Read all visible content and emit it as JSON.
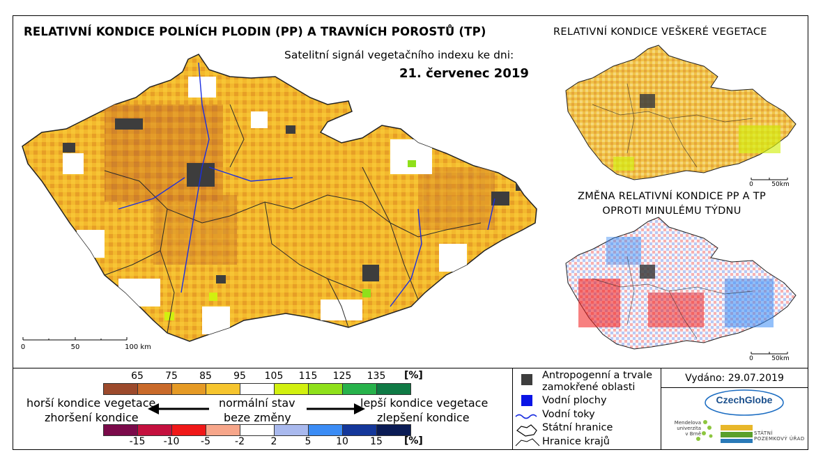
{
  "title": "RELATIVNÍ KONDICE POLNÍCH PLODIN (PP) A TRAVNÍCH POROSTŮ (TP)",
  "subtitle": "Satelitní signál vegetačního indexu ke dni:",
  "date": "21. červenec 2019",
  "right_panel_top_title": "RELATIVNÍ KONDICE VEŠKERÉ VEGETACE",
  "right_panel_bottom_title_line1": "ZMĚNA RELATIVNÍ KONDICE PP A TP",
  "right_panel_bottom_title_line2": "OPROTI MINULÉMU TÝDNU",
  "scale_main": {
    "ticks": [
      "0",
      "50",
      "100 km"
    ]
  },
  "scale_small_top": {
    "ticks": [
      "0",
      "50km"
    ]
  },
  "scale_small_bottom": {
    "ticks": [
      "0",
      "50km"
    ]
  },
  "legend": {
    "top_ticks": [
      "65",
      "75",
      "85",
      "95",
      "105",
      "115",
      "125",
      "135"
    ],
    "top_unit": "[%]",
    "top_colors": [
      "#9c4a2c",
      "#c96a2a",
      "#e59a25",
      "#f6c52e",
      "#ffffff",
      "#d2f00f",
      "#8fe01a",
      "#27b24b",
      "#0f7a45"
    ],
    "bottom_ticks": [
      "-15",
      "-10",
      "-5",
      "-2",
      "2",
      "5",
      "10",
      "15"
    ],
    "bottom_unit": "[%]",
    "bottom_colors": [
      "#7a0a4a",
      "#c4103e",
      "#f01818",
      "#f7a68a",
      "#ffffff",
      "#a9b9ee",
      "#3b8cf5",
      "#14379a",
      "#0a1b55"
    ],
    "worse_condition": "horší kondice vegetace",
    "worsened": "zhoršení kondice",
    "normal_state": "normální stav",
    "no_change": "beze změny",
    "better_condition": "lepší kondice vegetace",
    "improved": "zlepšení kondice"
  },
  "symbols": {
    "anthropogenic_line1": "Antropogenní a trvale",
    "anthropogenic_line2": "zamokřené oblasti",
    "water_bodies": "Vodní plochy",
    "rivers": "Vodní toky",
    "state_border": "Státní hranice",
    "region_border": "Hranice krajů",
    "colors": {
      "anthropogenic": "#3d3d3d",
      "water": "#0a14e6",
      "river": "#1a2ee0"
    }
  },
  "issued": "Vydáno: 29.07.2019",
  "logos": {
    "czechglobe": "CzechGlobe",
    "mendel_line1": "Mendelova",
    "mendel_line2": "univerzita",
    "mendel_line3": "v Brně",
    "spu_line1": "STÁTNÍ",
    "spu_line2": "POZEMKOVÝ ÚŘAD"
  }
}
